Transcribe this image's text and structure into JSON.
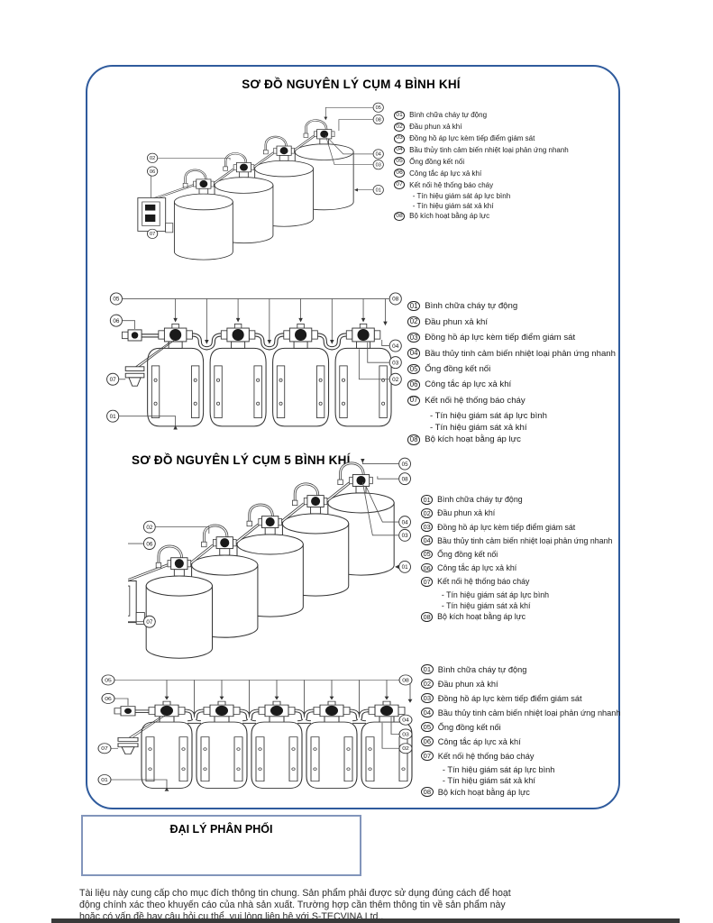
{
  "titles": {
    "cluster4": "SƠ ĐỒ NGUYÊN LÝ CỤM 4 BÌNH KHÍ",
    "cluster5": "SƠ ĐỒ NGUYÊN LÝ CỤM 5 BÌNH KHÍ"
  },
  "legend": {
    "items": [
      {
        "num": "01",
        "text": "Bình chữa cháy tự động"
      },
      {
        "num": "02",
        "text": "Đầu phun xả khí"
      },
      {
        "num": "03",
        "text": "Đồng hồ áp lực kèm tiếp điểm giám sát"
      },
      {
        "num": "04",
        "text": "Bầu thủy tinh cảm biến nhiệt loại phản ứng nhanh"
      },
      {
        "num": "05",
        "text": "Ống đồng kết nối"
      },
      {
        "num": "06",
        "text": "Công tắc áp lực xả khí"
      },
      {
        "num": "07",
        "text": "Kết nối hệ thống báo cháy",
        "sub": [
          "- Tín hiệu giám sát áp lực bình",
          "- Tín hiệu giám sát xả khí"
        ]
      },
      {
        "num": "08",
        "text": "Bộ kích hoạt bằng áp lực"
      }
    ]
  },
  "diagrams": [
    {
      "id": "d1",
      "name": "cluster4-perspective",
      "type": "perspective",
      "count": 4,
      "callouts": {
        "right": [
          "05",
          "08",
          "04",
          "03",
          "01"
        ],
        "left": [
          "02",
          "06"
        ],
        "bottom": [
          "07"
        ]
      }
    },
    {
      "id": "d2",
      "name": "cluster4-front",
      "type": "front",
      "count": 4,
      "callouts": {
        "left": [
          "05",
          "06",
          "07",
          "01"
        ],
        "right": [
          "08",
          "04",
          "03",
          "02"
        ]
      }
    },
    {
      "id": "d3",
      "name": "cluster5-perspective",
      "type": "perspective",
      "count": 5,
      "callouts": {
        "right": [
          "05",
          "08",
          "04",
          "03",
          "01"
        ],
        "left": [
          "02",
          "06"
        ],
        "bottom": [
          "07"
        ]
      }
    },
    {
      "id": "d4",
      "name": "cluster5-front",
      "type": "front",
      "count": 5,
      "callouts": {
        "left": [
          "05",
          "06",
          "07",
          "01"
        ],
        "right": [
          "08",
          "04",
          "03",
          "02"
        ]
      }
    }
  ],
  "distributor": {
    "label": "ĐẠI LÝ PHÂN PHỐI"
  },
  "footer": {
    "lines": [
      "Tài liệu này cung cấp cho mục đích thông tin chung. Sản phẩm phải được sử dụng đúng cách để hoạt",
      "động chính xác theo khuyến cáo của nhà sản xuất. Trường hợp cần thêm thông tin về sản phẩm này",
      "hoặc có vấn đề hay câu hỏi cụ thể, vui lòng liên hệ với S-TECVINA Ltd.,"
    ]
  },
  "colors": {
    "frame_border": "#2f5b9d",
    "distributor_border": "#8295bb",
    "line_art": "#333333",
    "bottom_bar": "#3a3a3a"
  }
}
